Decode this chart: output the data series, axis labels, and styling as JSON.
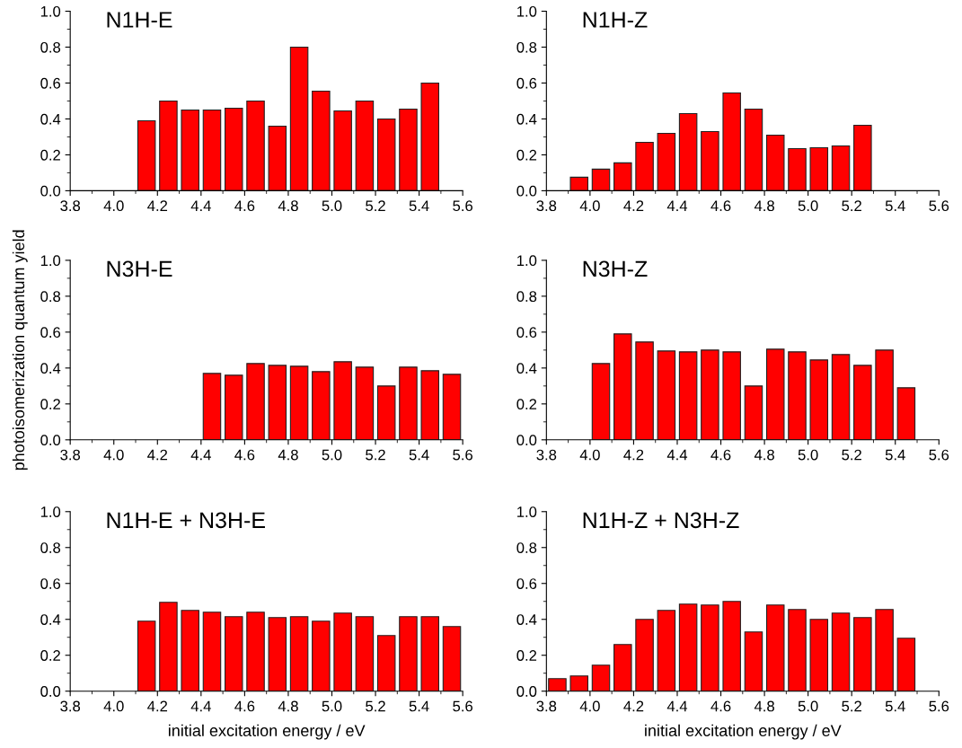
{
  "chart_data": [
    {
      "type": "bar",
      "title": "N1H-E",
      "color": "#ff0000",
      "x": [
        4.15,
        4.25,
        4.35,
        4.45,
        4.55,
        4.65,
        4.75,
        4.85,
        4.95,
        5.05,
        5.15,
        5.25,
        5.35,
        5.45
      ],
      "values": [
        0.39,
        0.5,
        0.45,
        0.45,
        0.46,
        0.5,
        0.36,
        0.8,
        0.555,
        0.445,
        0.5,
        0.4,
        0.455,
        0.6
      ],
      "xlim": [
        3.8,
        5.6
      ],
      "xticks": [
        {
          "value": 3.8,
          "label": "3.8"
        },
        {
          "value": 4.0,
          "label": "4.0"
        },
        {
          "value": 4.2,
          "label": "4.2"
        },
        {
          "value": 4.4,
          "label": "4.4"
        },
        {
          "value": 4.6,
          "label": "4.6"
        },
        {
          "value": 4.8,
          "label": "4.8"
        },
        {
          "value": 5.0,
          "label": "5.0"
        },
        {
          "value": 5.2,
          "label": "5.2"
        },
        {
          "value": 5.4,
          "label": "5.4"
        },
        {
          "value": 5.6,
          "label": "5.6"
        }
      ],
      "ylim": [
        0,
        1
      ],
      "yticks": [
        {
          "value": 0,
          "label": "0.0"
        },
        {
          "value": 0.2,
          "label": "0.2"
        },
        {
          "value": 0.4,
          "label": "0.4"
        },
        {
          "value": 0.6,
          "label": "0.6"
        },
        {
          "value": 0.8,
          "label": "0.8"
        },
        {
          "value": 1,
          "label": "1.0"
        }
      ],
      "grid": false
    },
    {
      "type": "bar",
      "title": "N1H-Z",
      "color": "#ff0000",
      "x": [
        3.95,
        4.05,
        4.15,
        4.25,
        4.35,
        4.45,
        4.55,
        4.65,
        4.75,
        4.85,
        4.95,
        5.05,
        5.15,
        5.25
      ],
      "values": [
        0.075,
        0.12,
        0.155,
        0.27,
        0.32,
        0.43,
        0.33,
        0.545,
        0.455,
        0.31,
        0.235,
        0.24,
        0.25,
        0.365
      ],
      "xlim": [
        3.8,
        5.6
      ],
      "xticks": [
        {
          "value": 3.8,
          "label": "3.8"
        },
        {
          "value": 4.0,
          "label": "4.0"
        },
        {
          "value": 4.2,
          "label": "4.2"
        },
        {
          "value": 4.4,
          "label": "4.4"
        },
        {
          "value": 4.6,
          "label": "4.6"
        },
        {
          "value": 4.8,
          "label": "4.8"
        },
        {
          "value": 5.0,
          "label": "5.0"
        },
        {
          "value": 5.2,
          "label": "5.2"
        },
        {
          "value": 5.4,
          "label": "5.4"
        },
        {
          "value": 5.6,
          "label": "5.6"
        }
      ],
      "ylim": [
        0,
        1
      ],
      "yticks": [
        {
          "value": 0,
          "label": "0.0"
        },
        {
          "value": 0.2,
          "label": "0.2"
        },
        {
          "value": 0.4,
          "label": "0.4"
        },
        {
          "value": 0.6,
          "label": "0.6"
        },
        {
          "value": 0.8,
          "label": "0.8"
        },
        {
          "value": 1,
          "label": "1.0"
        }
      ],
      "grid": false
    },
    {
      "type": "bar",
      "title": "N3H-E",
      "ylabel": "photoisomerization quantum yield",
      "color": "#ff0000",
      "x": [
        4.45,
        4.55,
        4.65,
        4.75,
        4.85,
        4.95,
        5.05,
        5.15,
        5.25,
        5.35,
        5.45,
        5.55
      ],
      "values": [
        0.37,
        0.36,
        0.425,
        0.415,
        0.41,
        0.38,
        0.435,
        0.405,
        0.3,
        0.405,
        0.385,
        0.365
      ],
      "xlim": [
        3.8,
        5.6
      ],
      "xticks": [
        {
          "value": 3.8,
          "label": "3.8"
        },
        {
          "value": 4.0,
          "label": "4.0"
        },
        {
          "value": 4.2,
          "label": "4.2"
        },
        {
          "value": 4.4,
          "label": "4.4"
        },
        {
          "value": 4.6,
          "label": "4.6"
        },
        {
          "value": 4.8,
          "label": "4.8"
        },
        {
          "value": 5.0,
          "label": "5.0"
        },
        {
          "value": 5.2,
          "label": "5.2"
        },
        {
          "value": 5.4,
          "label": "5.4"
        },
        {
          "value": 5.6,
          "label": "5.6"
        }
      ],
      "ylim": [
        0,
        1
      ],
      "yticks": [
        {
          "value": 0,
          "label": "0.0"
        },
        {
          "value": 0.2,
          "label": "0.2"
        },
        {
          "value": 0.4,
          "label": "0.4"
        },
        {
          "value": 0.6,
          "label": "0.6"
        },
        {
          "value": 0.8,
          "label": "0.8"
        },
        {
          "value": 1,
          "label": "1.0"
        }
      ],
      "grid": false
    },
    {
      "type": "bar",
      "title": "N3H-Z",
      "color": "#ff0000",
      "x": [
        4.05,
        4.15,
        4.25,
        4.35,
        4.45,
        4.55,
        4.65,
        4.75,
        4.85,
        4.95,
        5.05,
        5.15,
        5.25,
        5.35,
        5.45
      ],
      "values": [
        0.425,
        0.59,
        0.545,
        0.495,
        0.49,
        0.5,
        0.49,
        0.3,
        0.505,
        0.49,
        0.445,
        0.475,
        0.415,
        0.5,
        0.29
      ],
      "xlim": [
        3.8,
        5.6
      ],
      "xticks": [
        {
          "value": 3.8,
          "label": "3.8"
        },
        {
          "value": 4.0,
          "label": "4.0"
        },
        {
          "value": 4.2,
          "label": "4.2"
        },
        {
          "value": 4.4,
          "label": "4.4"
        },
        {
          "value": 4.6,
          "label": "4.6"
        },
        {
          "value": 4.8,
          "label": "4.8"
        },
        {
          "value": 5.0,
          "label": "5.0"
        },
        {
          "value": 5.2,
          "label": "5.2"
        },
        {
          "value": 5.4,
          "label": "5.4"
        },
        {
          "value": 5.6,
          "label": "5.6"
        }
      ],
      "ylim": [
        0,
        1
      ],
      "yticks": [
        {
          "value": 0,
          "label": "0.0"
        },
        {
          "value": 0.2,
          "label": "0.2"
        },
        {
          "value": 0.4,
          "label": "0.4"
        },
        {
          "value": 0.6,
          "label": "0.6"
        },
        {
          "value": 0.8,
          "label": "0.8"
        },
        {
          "value": 1,
          "label": "1.0"
        }
      ],
      "grid": false
    },
    {
      "type": "bar",
      "title": "N1H-E + N3H-E",
      "xlabel": "initial excitation energy / eV",
      "color": "#ff0000",
      "x": [
        4.15,
        4.25,
        4.35,
        4.45,
        4.55,
        4.65,
        4.75,
        4.85,
        4.95,
        5.05,
        5.15,
        5.25,
        5.35,
        5.45,
        5.55
      ],
      "values": [
        0.39,
        0.495,
        0.45,
        0.44,
        0.415,
        0.44,
        0.41,
        0.415,
        0.39,
        0.435,
        0.415,
        0.31,
        0.415,
        0.415,
        0.36
      ],
      "xlim": [
        3.8,
        5.6
      ],
      "xticks": [
        {
          "value": 3.8,
          "label": "3.8"
        },
        {
          "value": 4.0,
          "label": "4.0"
        },
        {
          "value": 4.2,
          "label": "4.2"
        },
        {
          "value": 4.4,
          "label": "4.4"
        },
        {
          "value": 4.6,
          "label": "4.6"
        },
        {
          "value": 4.8,
          "label": "4.8"
        },
        {
          "value": 5.0,
          "label": "5.0"
        },
        {
          "value": 5.2,
          "label": "5.2"
        },
        {
          "value": 5.4,
          "label": "5.4"
        },
        {
          "value": 5.6,
          "label": "5.6"
        }
      ],
      "ylim": [
        0,
        1
      ],
      "yticks": [
        {
          "value": 0,
          "label": "0.0"
        },
        {
          "value": 0.2,
          "label": "0.2"
        },
        {
          "value": 0.4,
          "label": "0.4"
        },
        {
          "value": 0.6,
          "label": "0.6"
        },
        {
          "value": 0.8,
          "label": "0.8"
        },
        {
          "value": 1,
          "label": "1.0"
        }
      ],
      "grid": false
    },
    {
      "type": "bar",
      "title": "N1H-Z + N3H-Z",
      "xlabel": "initial excitation energy / eV",
      "color": "#ff0000",
      "x": [
        3.85,
        3.95,
        4.05,
        4.15,
        4.25,
        4.35,
        4.45,
        4.55,
        4.65,
        4.75,
        4.85,
        4.95,
        5.05,
        5.15,
        5.25,
        5.35,
        5.45
      ],
      "values": [
        0.07,
        0.085,
        0.145,
        0.26,
        0.4,
        0.45,
        0.485,
        0.48,
        0.5,
        0.33,
        0.48,
        0.455,
        0.4,
        0.435,
        0.41,
        0.455,
        0.295
      ],
      "xlim": [
        3.8,
        5.6
      ],
      "xticks": [
        {
          "value": 3.8,
          "label": "3.8"
        },
        {
          "value": 4.0,
          "label": "4.0"
        },
        {
          "value": 4.2,
          "label": "4.2"
        },
        {
          "value": 4.4,
          "label": "4.4"
        },
        {
          "value": 4.6,
          "label": "4.6"
        },
        {
          "value": 4.8,
          "label": "4.8"
        },
        {
          "value": 5.0,
          "label": "5.0"
        },
        {
          "value": 5.2,
          "label": "5.2"
        },
        {
          "value": 5.4,
          "label": "5.4"
        },
        {
          "value": 5.6,
          "label": "5.6"
        }
      ],
      "ylim": [
        0,
        1
      ],
      "yticks": [
        {
          "value": 0,
          "label": "0.0"
        },
        {
          "value": 0.2,
          "label": "0.2"
        },
        {
          "value": 0.4,
          "label": "0.4"
        },
        {
          "value": 0.6,
          "label": "0.6"
        },
        {
          "value": 0.8,
          "label": "0.8"
        },
        {
          "value": 1,
          "label": "1.0"
        }
      ],
      "grid": false
    }
  ]
}
